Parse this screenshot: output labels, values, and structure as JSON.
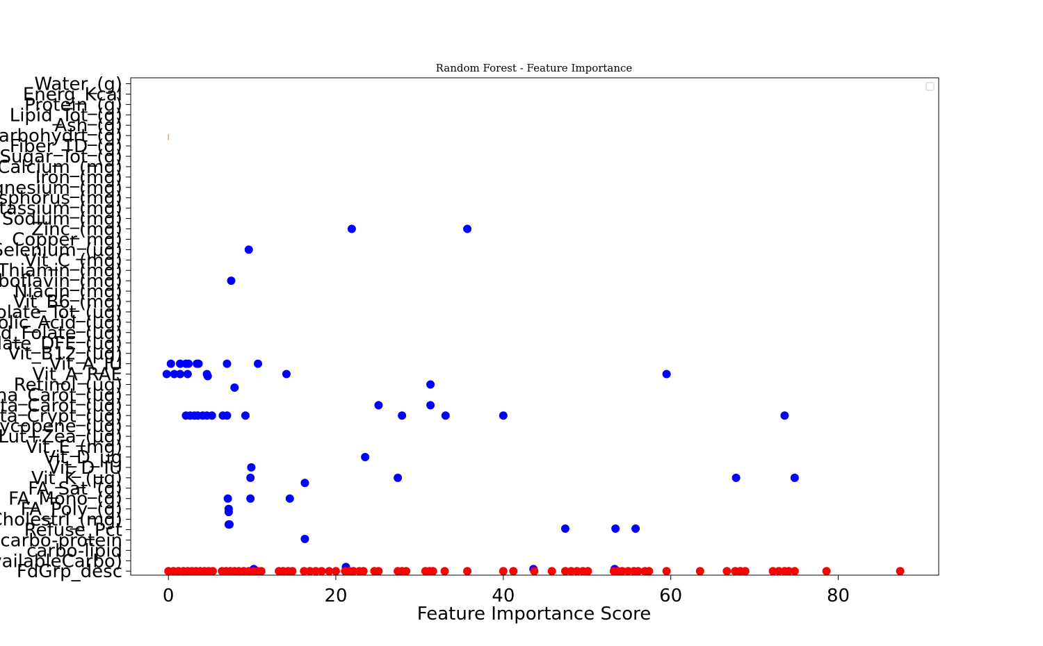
{
  "chart_data": {
    "type": "scatter",
    "title": "Random Forest - Feature Importance",
    "xlabel": "Feature Importance Score",
    "ylabel": "",
    "xlim": [
      -4.5,
      92
    ],
    "xticks": [
      0,
      20,
      40,
      60,
      80
    ],
    "xtick_labels": [
      "0",
      "20",
      "40",
      "60",
      "80"
    ],
    "legend": {
      "placement": "top-right",
      "entries": []
    },
    "categories": [
      "Water_(g)",
      "Energ_Kcal",
      "Protein_(g)",
      "Lipid_Tot_(g)",
      "Ash_(g)",
      "Carbohydrt_(g)",
      "Fiber_TD_(g)",
      "Sugar_Tot_(g)",
      "Calcium_(mg)",
      "Iron_(mg)",
      "Magnesium_(mg)",
      "Phosphorus_(mg)",
      "Potassium_(mg)",
      "Sodium_(mg)",
      "Zinc_(mg)",
      "Copper_mg)",
      "Selenium_(µg)",
      "Vit_C_(mg)",
      "Thiamin_(mg)",
      "Riboflavin_(mg)",
      "Niacin_(mg)",
      "Vit_B6_(mg)",
      "Folate_Tot_(µg)",
      "Folic_Acid_(µg)",
      "Food_Folate_(µg)",
      "Folate_DFE_(µg)",
      "Vit_B12_(µg)",
      "Vit_A_IU",
      "Vit_A_RAE",
      "Retinol_(µg)",
      "Alpha_Carot_(µg)",
      "Beta_Carot_(µg)",
      "Beta_Crypt_(µg)",
      "Lycopene_(µg)",
      "Lut+Zea_(µg)",
      "Vit_E_(mg)",
      "Vit_D_µg",
      "Vit_D_IU",
      "Vit_K_(µg)",
      "FA_Sat_(g)",
      "FA_Mono_(g)",
      "FA_Poly_(g)",
      "Cholestrl_(mg)",
      "Refuse_Pct",
      "carbo-protein",
      "carbo-lipid",
      "AvailableCarbo)",
      "FdGrp_desc"
    ],
    "series": [
      {
        "name": "blue",
        "color": "#0000ff",
        "points": [
          {
            "x": 21.9,
            "y": 14.0
          },
          {
            "x": 35.7,
            "y": 14.0
          },
          {
            "x": 9.6,
            "y": 16.0
          },
          {
            "x": 7.5,
            "y": 19.0
          },
          {
            "x": 0.3,
            "y": 27.0
          },
          {
            "x": 1.4,
            "y": 27.0
          },
          {
            "x": 2.1,
            "y": 27.0
          },
          {
            "x": 2.4,
            "y": 27.0
          },
          {
            "x": 3.4,
            "y": 27.0
          },
          {
            "x": 3.6,
            "y": 27.0
          },
          {
            "x": 7.0,
            "y": 27.0
          },
          {
            "x": 10.7,
            "y": 27.0
          },
          {
            "x": -0.2,
            "y": 28.0
          },
          {
            "x": 0.7,
            "y": 28.0
          },
          {
            "x": 1.4,
            "y": 28.0
          },
          {
            "x": 2.3,
            "y": 28.0
          },
          {
            "x": 4.6,
            "y": 28.0
          },
          {
            "x": 4.7,
            "y": 28.2
          },
          {
            "x": 14.1,
            "y": 28.0
          },
          {
            "x": 59.5,
            "y": 28.0
          },
          {
            "x": 7.9,
            "y": 29.3
          },
          {
            "x": 31.3,
            "y": 29.0
          },
          {
            "x": 25.1,
            "y": 31.0
          },
          {
            "x": 31.3,
            "y": 31.0
          },
          {
            "x": 2.1,
            "y": 32.0
          },
          {
            "x": 2.6,
            "y": 32.0
          },
          {
            "x": 3.1,
            "y": 32.0
          },
          {
            "x": 3.5,
            "y": 32.0
          },
          {
            "x": 4.1,
            "y": 32.0
          },
          {
            "x": 4.6,
            "y": 32.0
          },
          {
            "x": 5.2,
            "y": 32.0
          },
          {
            "x": 6.5,
            "y": 32.0
          },
          {
            "x": 7.0,
            "y": 32.0
          },
          {
            "x": 9.2,
            "y": 32.0
          },
          {
            "x": 27.9,
            "y": 32.0
          },
          {
            "x": 33.1,
            "y": 32.0
          },
          {
            "x": 40.0,
            "y": 32.0
          },
          {
            "x": 73.6,
            "y": 32.0
          },
          {
            "x": 23.5,
            "y": 36.0
          },
          {
            "x": 9.9,
            "y": 37.0
          },
          {
            "x": 9.8,
            "y": 38.0
          },
          {
            "x": 27.4,
            "y": 38.0
          },
          {
            "x": 67.8,
            "y": 38.0
          },
          {
            "x": 74.8,
            "y": 38.0
          },
          {
            "x": 16.3,
            "y": 38.5
          },
          {
            "x": 7.1,
            "y": 40.0
          },
          {
            "x": 9.8,
            "y": 40.0
          },
          {
            "x": 14.5,
            "y": 40.0
          },
          {
            "x": 7.2,
            "y": 41.0
          },
          {
            "x": 7.2,
            "y": 41.3
          },
          {
            "x": 7.2,
            "y": 42.5
          },
          {
            "x": 7.3,
            "y": 42.5
          },
          {
            "x": 47.4,
            "y": 42.9
          },
          {
            "x": 53.4,
            "y": 42.9
          },
          {
            "x": 55.8,
            "y": 42.9
          },
          {
            "x": 16.3,
            "y": 43.9
          },
          {
            "x": 21.2,
            "y": 46.6
          },
          {
            "x": 10.2,
            "y": 46.8
          },
          {
            "x": 43.6,
            "y": 46.8
          },
          {
            "x": 53.3,
            "y": 46.8
          }
        ]
      },
      {
        "name": "red",
        "color": "#ff0000",
        "points": [
          {
            "x": 0,
            "y": 47
          },
          {
            "x": 0.6,
            "y": 47
          },
          {
            "x": 1.2,
            "y": 47
          },
          {
            "x": 1.8,
            "y": 47
          },
          {
            "x": 2.3,
            "y": 47
          },
          {
            "x": 2.8,
            "y": 47
          },
          {
            "x": 3.3,
            "y": 47
          },
          {
            "x": 3.8,
            "y": 47
          },
          {
            "x": 4.3,
            "y": 47
          },
          {
            "x": 4.8,
            "y": 47
          },
          {
            "x": 5.3,
            "y": 47
          },
          {
            "x": 6.4,
            "y": 47
          },
          {
            "x": 6.9,
            "y": 47
          },
          {
            "x": 7.4,
            "y": 47
          },
          {
            "x": 7.9,
            "y": 47
          },
          {
            "x": 8.4,
            "y": 47
          },
          {
            "x": 9.0,
            "y": 47
          },
          {
            "x": 9.6,
            "y": 47
          },
          {
            "x": 10.2,
            "y": 47
          },
          {
            "x": 10.7,
            "y": 47
          },
          {
            "x": 11.1,
            "y": 47
          },
          {
            "x": 13.2,
            "y": 47
          },
          {
            "x": 13.7,
            "y": 47
          },
          {
            "x": 14.3,
            "y": 47
          },
          {
            "x": 14.8,
            "y": 47
          },
          {
            "x": 16.2,
            "y": 47
          },
          {
            "x": 16.9,
            "y": 47
          },
          {
            "x": 17.6,
            "y": 47
          },
          {
            "x": 18.3,
            "y": 47
          },
          {
            "x": 19.2,
            "y": 47
          },
          {
            "x": 20.0,
            "y": 47
          },
          {
            "x": 21.1,
            "y": 47
          },
          {
            "x": 21.6,
            "y": 47
          },
          {
            "x": 22.1,
            "y": 47
          },
          {
            "x": 22.8,
            "y": 47
          },
          {
            "x": 23.3,
            "y": 47
          },
          {
            "x": 24.6,
            "y": 47
          },
          {
            "x": 25.1,
            "y": 47
          },
          {
            "x": 27.4,
            "y": 47
          },
          {
            "x": 27.9,
            "y": 47
          },
          {
            "x": 28.4,
            "y": 47
          },
          {
            "x": 30.7,
            "y": 47
          },
          {
            "x": 31.2,
            "y": 47
          },
          {
            "x": 31.6,
            "y": 47
          },
          {
            "x": 33.0,
            "y": 47
          },
          {
            "x": 35.7,
            "y": 47
          },
          {
            "x": 40.0,
            "y": 47
          },
          {
            "x": 41.2,
            "y": 47
          },
          {
            "x": 43.7,
            "y": 47
          },
          {
            "x": 45.8,
            "y": 47
          },
          {
            "x": 47.4,
            "y": 47
          },
          {
            "x": 48.1,
            "y": 47
          },
          {
            "x": 48.8,
            "y": 47
          },
          {
            "x": 49.5,
            "y": 47
          },
          {
            "x": 50.1,
            "y": 47
          },
          {
            "x": 53.2,
            "y": 47
          },
          {
            "x": 53.7,
            "y": 47
          },
          {
            "x": 54.2,
            "y": 47
          },
          {
            "x": 54.9,
            "y": 47
          },
          {
            "x": 55.6,
            "y": 47
          },
          {
            "x": 56.1,
            "y": 47
          },
          {
            "x": 56.9,
            "y": 47
          },
          {
            "x": 57.4,
            "y": 47
          },
          {
            "x": 59.5,
            "y": 47
          },
          {
            "x": 63.5,
            "y": 47
          },
          {
            "x": 66.7,
            "y": 47
          },
          {
            "x": 67.7,
            "y": 47
          },
          {
            "x": 68.3,
            "y": 47
          },
          {
            "x": 68.9,
            "y": 47
          },
          {
            "x": 72.2,
            "y": 47
          },
          {
            "x": 72.9,
            "y": 47
          },
          {
            "x": 73.6,
            "y": 47
          },
          {
            "x": 74.1,
            "y": 47
          },
          {
            "x": 74.8,
            "y": 47
          },
          {
            "x": 78.6,
            "y": 47
          },
          {
            "x": 87.4,
            "y": 47
          }
        ]
      }
    ],
    "annotations": [
      {
        "type": "errorbar",
        "x": 0,
        "y_range": [
          4.85,
          5.45
        ],
        "color": "#c8a070"
      }
    ]
  }
}
